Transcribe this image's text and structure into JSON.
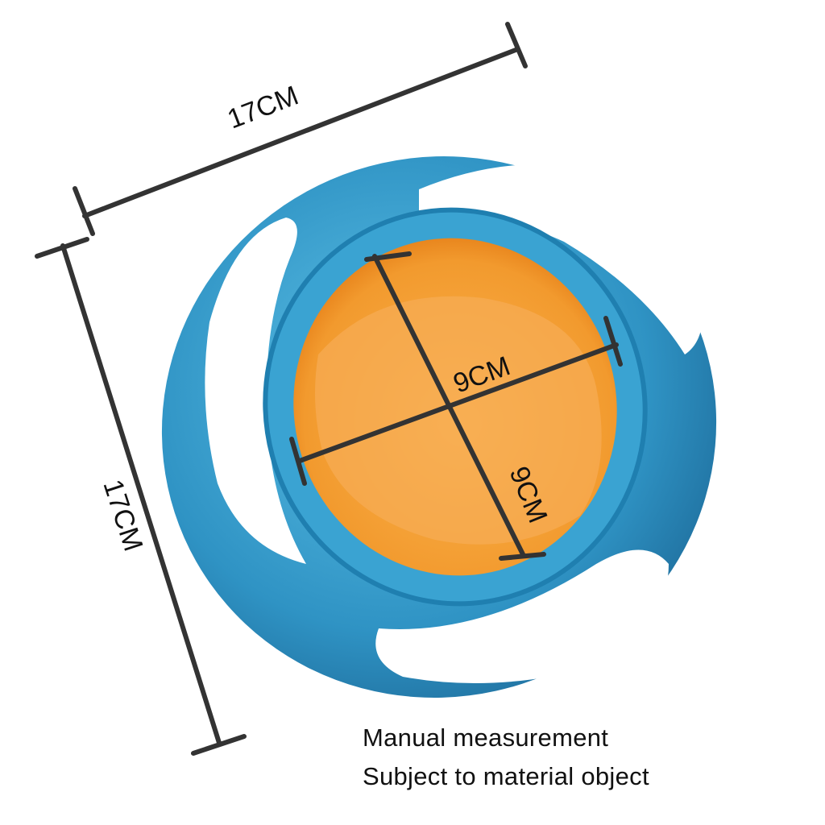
{
  "dimensions": {
    "outer_width": "17CM",
    "outer_height": "17CM",
    "inner_width": "9CM",
    "inner_depth": "9CM"
  },
  "note": {
    "line1": "Manual measurement",
    "line2": "Subject to material object"
  },
  "colors": {
    "bowl_outer": "#2f93c4",
    "bowl_inner": "#f6a03a",
    "measure_line": "#333333"
  }
}
